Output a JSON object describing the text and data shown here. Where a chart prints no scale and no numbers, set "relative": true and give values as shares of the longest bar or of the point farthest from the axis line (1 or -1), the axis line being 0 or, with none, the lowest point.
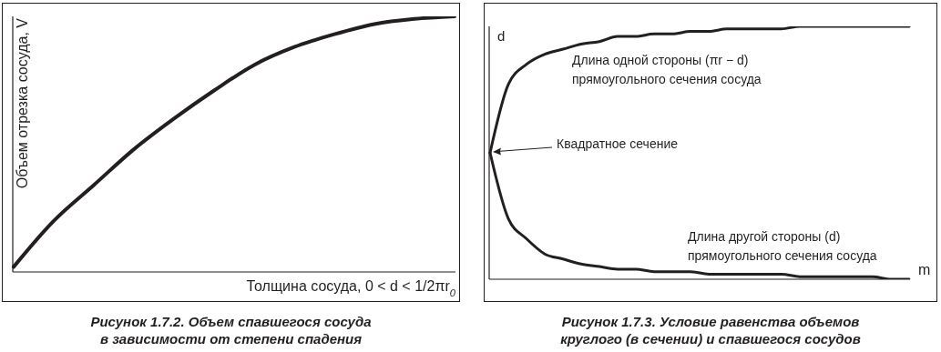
{
  "chart_data": [
    {
      "type": "line",
      "title": "Рисунок 1.7.2. Объем спавшегося сосуда\nв зависимости от степени спадения",
      "xlabel": "Толщина сосуда, 0 < d < 1/2πr$_{0}$",
      "ylabel": "Объем отрезка сосуда, V",
      "relative": true,
      "legend": false,
      "grid": false,
      "marker": "none",
      "categories": [
        null,
        null,
        null,
        null,
        null,
        null,
        null,
        null,
        null,
        null,
        null,
        null
      ],
      "series": [
        {
          "color": "#231f20",
          "values": [
            0.02,
            0.2,
            0.34,
            0.48,
            0.6,
            0.71,
            0.81,
            0.88,
            0.93,
            0.97,
            0.99,
            1.0
          ]
        }
      ]
    },
    {
      "type": "line",
      "title": "Рисунок 1.7.3. Условие равенства объемов\nкруглого (в сечении) и спавшегося сосудов",
      "xlabel": "m",
      "ylabel": "d",
      "relative": true,
      "legend": false,
      "grid": false,
      "marker": "none",
      "annotations": [
        "Длина одной стороны (πr − d)\nпрямоугольного сечения сосуда",
        "Квадратное сечение",
        "Длина другой стороны (d)\nпрямоугольного сечения сосуда"
      ],
      "categories": [
        null,
        null,
        null,
        null,
        null,
        null,
        null,
        null,
        null,
        null,
        null,
        null,
        null,
        null,
        null,
        null,
        null,
        null,
        null,
        null,
        null,
        null,
        null,
        null
      ],
      "series": [
        {
          "color": "#231f20",
          "values": [
            0.5,
            0.77,
            0.85,
            0.89,
            0.91,
            0.93,
            0.94,
            0.96,
            0.96,
            0.97,
            0.97,
            0.98,
            0.98,
            0.99,
            0.99,
            0.99,
            0.99,
            1.0,
            1.0,
            1.0,
            1.0,
            1.0,
            1.0,
            1.0
          ]
        },
        {
          "color": "#231f20",
          "values": [
            0.5,
            0.24,
            0.16,
            0.1,
            0.08,
            0.06,
            0.05,
            0.04,
            0.04,
            0.03,
            0.03,
            0.03,
            0.02,
            0.02,
            0.02,
            0.02,
            0.02,
            0.01,
            0.01,
            0.01,
            0.01,
            0.01,
            0.0,
            0.0
          ]
        }
      ]
    }
  ]
}
